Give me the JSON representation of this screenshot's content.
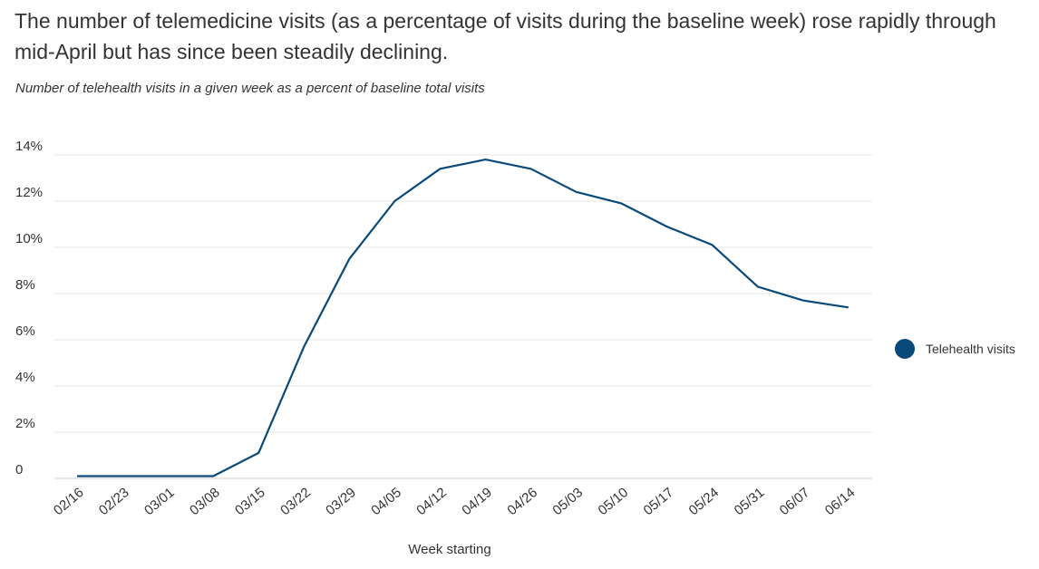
{
  "title": "The number of telemedicine visits (as a percentage of visits during the baseline week) rose rapidly through mid-April but has since been steadily declining.",
  "subtitle": "Number of telehealth visits in a given week as a percent of baseline total visits",
  "chart_data": {
    "type": "line",
    "title": "The number of telemedicine visits (as a percentage of visits during the baseline week) rose rapidly through mid-April but has since been steadily declining.",
    "subtitle": "Number of telehealth visits in a given week as a percent of baseline total visits",
    "xlabel": "Week starting",
    "ylabel": "",
    "categories": [
      "02/16",
      "02/23",
      "03/01",
      "03/08",
      "03/15",
      "03/22",
      "03/29",
      "04/05",
      "04/12",
      "04/19",
      "04/26",
      "05/03",
      "05/10",
      "05/17",
      "05/24",
      "05/31",
      "06/07",
      "06/14"
    ],
    "series": [
      {
        "name": "Telehealth visits",
        "color": "#0a4a7a",
        "values": [
          0.1,
          0.1,
          0.1,
          0.1,
          1.1,
          5.7,
          9.5,
          12.0,
          13.4,
          13.8,
          13.4,
          12.4,
          11.9,
          10.9,
          10.1,
          8.3,
          7.7,
          7.4
        ]
      }
    ],
    "ylim": [
      0,
      14
    ],
    "yticks": [
      0,
      2,
      4,
      6,
      8,
      10,
      12,
      14
    ],
    "ytick_labels": [
      "0",
      "2%",
      "4%",
      "6%",
      "8%",
      "10%",
      "12%",
      "14%"
    ],
    "grid": true,
    "legend_position": "right"
  }
}
